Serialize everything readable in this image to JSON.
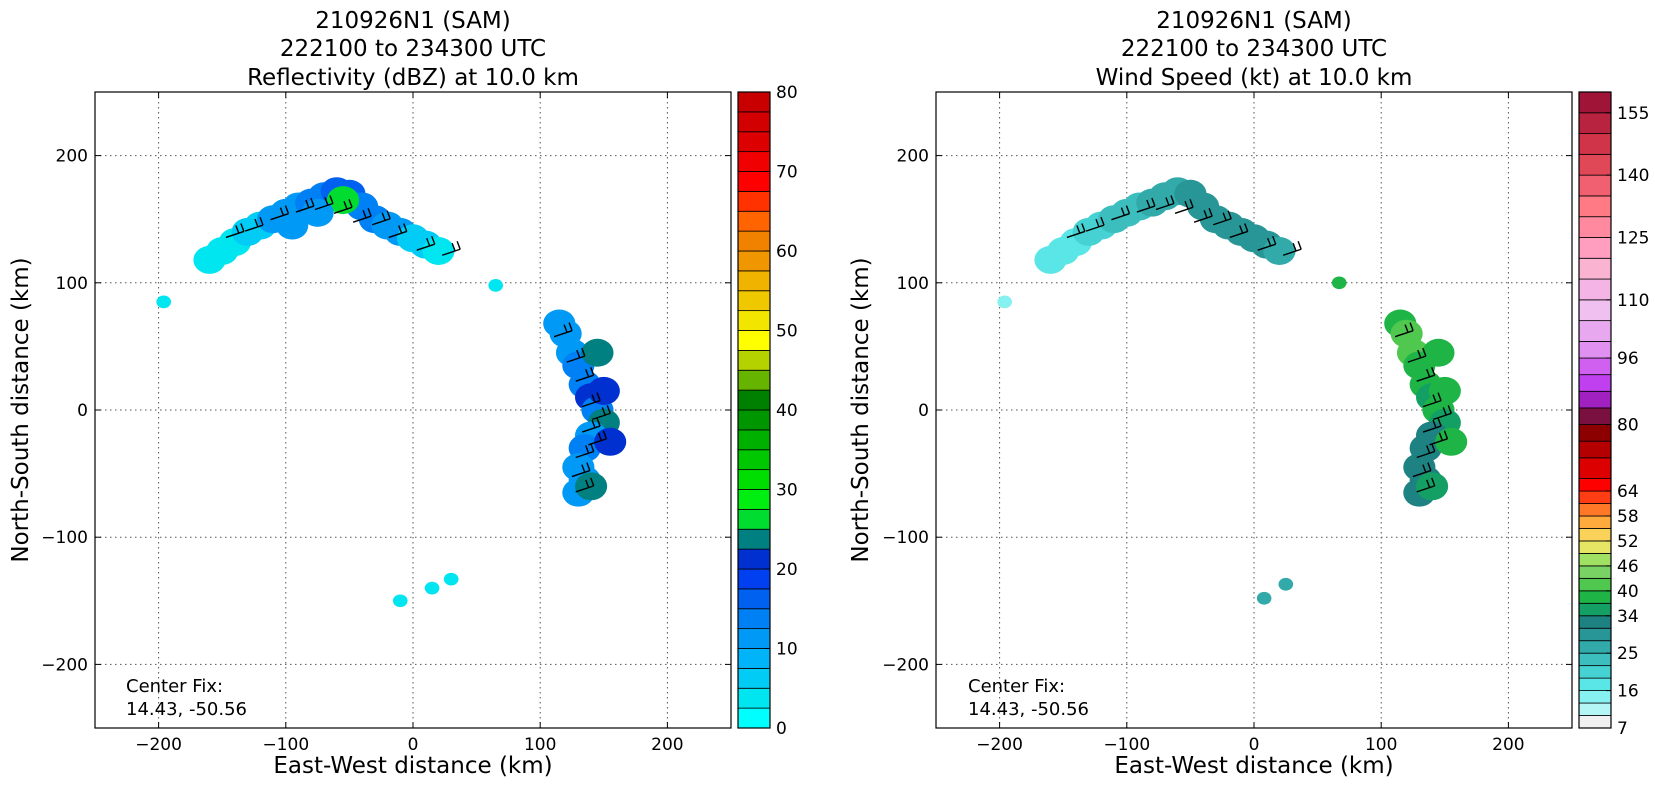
{
  "charts": [
    {
      "title_lines": [
        "210926N1 (SAM)",
        "222100 to 234300 UTC",
        "Reflectivity (dBZ) at 10.0 km"
      ],
      "xlabel": "East-West distance (km)",
      "ylabel": "North-South distance (km)",
      "xlim": [
        -250,
        250
      ],
      "ylim": [
        -250,
        250
      ],
      "xticks": [
        -200,
        -100,
        0,
        100,
        200
      ],
      "yticks": [
        -200,
        -100,
        0,
        100,
        200
      ],
      "xtick_labels": [
        "−200",
        "−100",
        "0",
        "100",
        "200"
      ],
      "ytick_labels": [
        "−200",
        "−100",
        "0",
        "100",
        "200"
      ],
      "grid": true,
      "note_lines": [
        "Center Fix:",
        "14.43, -50.56"
      ],
      "colorbar": {
        "levels": [
          0,
          2.5,
          5,
          7.5,
          10,
          12.5,
          15,
          17.5,
          20,
          22.5,
          25,
          27.5,
          30,
          32.5,
          35,
          37.5,
          40,
          42.5,
          45,
          47.5,
          50,
          52.5,
          55,
          57.5,
          60,
          62.5,
          65,
          67.5,
          70,
          72.5,
          75,
          77.5,
          80
        ],
        "colors": [
          "#00ffff",
          "#00e6f0",
          "#00ccf5",
          "#00b4fa",
          "#0099f5",
          "#0080f5",
          "#0060f0",
          "#0040f0",
          "#0030d0",
          "#008080",
          "#00dd30",
          "#00ee10",
          "#00dd00",
          "#00c800",
          "#00b000",
          "#009600",
          "#008000",
          "#66b400",
          "#b4d200",
          "#ffff00",
          "#f2e600",
          "#f0c800",
          "#f0b400",
          "#f09600",
          "#f08200",
          "#ff6400",
          "#ff3200",
          "#ff0000",
          "#f00000",
          "#dc0000",
          "#d20000",
          "#c80000",
          "#c00010"
        ],
        "tick_values": [
          0,
          10,
          20,
          30,
          40,
          50,
          60,
          70,
          80
        ],
        "tick_labels": [
          "0",
          "10",
          "20",
          "30",
          "40",
          "50",
          "60",
          "70",
          "80"
        ]
      },
      "chart_data": {
        "type": "heatmap",
        "fields": [
          {
            "name": "northwest-band",
            "points": [
              [
                -150,
                125,
                3
              ],
              [
                -140,
                132,
                3
              ],
              [
                -130,
                140,
                5
              ],
              [
                -120,
                145,
                6
              ],
              [
                -110,
                150,
                10
              ],
              [
                -100,
                155,
                10
              ],
              [
                -90,
                160,
                12
              ],
              [
                -80,
                163,
                13
              ],
              [
                -70,
                168,
                14
              ],
              [
                -60,
                172,
                16
              ],
              [
                -50,
                170,
                15
              ],
              [
                -40,
                160,
                14
              ],
              [
                -30,
                150,
                13
              ],
              [
                -20,
                145,
                11
              ],
              [
                -10,
                140,
                10
              ],
              [
                0,
                135,
                6
              ],
              [
                10,
                130,
                5
              ],
              [
                20,
                125,
                4
              ],
              [
                -160,
                118,
                3
              ],
              [
                -55,
                165,
                26
              ],
              [
                -75,
                155,
                12
              ],
              [
                -95,
                145,
                10
              ]
            ]
          },
          {
            "name": "eastern-band",
            "points": [
              [
                115,
                68,
                10
              ],
              [
                120,
                60,
                12
              ],
              [
                125,
                45,
                11
              ],
              [
                130,
                35,
                14
              ],
              [
                135,
                20,
                13
              ],
              [
                140,
                10,
                22
              ],
              [
                145,
                0,
                14
              ],
              [
                150,
                -10,
                24
              ],
              [
                140,
                -20,
                12
              ],
              [
                135,
                -30,
                13
              ],
              [
                130,
                -45,
                12
              ],
              [
                135,
                -55,
                11
              ],
              [
                130,
                -65,
                10
              ],
              [
                140,
                -60,
                24
              ],
              [
                155,
                -25,
                22
              ],
              [
                150,
                15,
                20
              ],
              [
                145,
                45,
                24
              ]
            ]
          },
          {
            "name": "small-echoes",
            "points": [
              [
                -196,
                85,
                3
              ],
              [
                65,
                98,
                3
              ],
              [
                -10,
                -150,
                3
              ],
              [
                15,
                -140,
                3
              ],
              [
                30,
                -133,
                3
              ]
            ]
          }
        ]
      }
    },
    {
      "title_lines": [
        "210926N1 (SAM)",
        "222100 to 234300 UTC",
        "Wind Speed (kt) at 10.0 km"
      ],
      "xlabel": "East-West distance (km)",
      "ylabel": "North-South distance (km)",
      "xlim": [
        -250,
        250
      ],
      "ylim": [
        -250,
        250
      ],
      "xticks": [
        -200,
        -100,
        0,
        100,
        200
      ],
      "yticks": [
        -200,
        -100,
        0,
        100,
        200
      ],
      "xtick_labels": [
        "−200",
        "−100",
        "0",
        "100",
        "200"
      ],
      "ytick_labels": [
        "−200",
        "−100",
        "0",
        "100",
        "200"
      ],
      "grid": true,
      "note_lines": [
        "Center Fix:",
        "14.43, -50.56"
      ],
      "colorbar": {
        "levels": [
          7,
          10,
          13,
          16,
          19,
          22,
          25,
          28,
          31,
          34,
          37,
          40,
          43,
          46,
          49,
          52,
          55,
          58,
          61,
          64,
          67,
          72,
          76,
          80,
          84,
          88,
          92,
          96,
          100,
          105,
          110,
          115,
          120,
          125,
          130,
          135,
          140,
          145,
          150,
          155,
          160
        ],
        "colors": [
          "#f0f0f0",
          "#b4f5f5",
          "#87f0f0",
          "#5ae6e6",
          "#46d2d2",
          "#3cbebe",
          "#32aaaa",
          "#289696",
          "#1e8282",
          "#14a064",
          "#1eb446",
          "#50c850",
          "#78d264",
          "#a0e164",
          "#e6e664",
          "#fad25a",
          "#ffaa3c",
          "#ff7828",
          "#ff3c14",
          "#ff0000",
          "#dc0000",
          "#b40000",
          "#8c0000",
          "#7a1040",
          "#a020c0",
          "#c040f0",
          "#d060f0",
          "#e090f0",
          "#e8a8f0",
          "#f0c0f0",
          "#f5b4e6",
          "#fab4d2",
          "#ff9ebe",
          "#ff8aa0",
          "#ff7a84",
          "#f06070",
          "#e04858",
          "#d03448",
          "#b82440",
          "#a01438"
        ],
        "tick_values": [
          7,
          16,
          25,
          34,
          40,
          46,
          52,
          58,
          64,
          80,
          96,
          110,
          125,
          140,
          155
        ],
        "tick_labels": [
          "7",
          "16",
          "25",
          "34",
          "40",
          "46",
          "52",
          "58",
          "64",
          "80",
          "96",
          "110",
          "125",
          "140",
          "155"
        ]
      },
      "chart_data": {
        "type": "heatmap",
        "fields": [
          {
            "name": "northwest-band",
            "points": [
              [
                -150,
                125,
                16
              ],
              [
                -140,
                132,
                17
              ],
              [
                -130,
                140,
                19
              ],
              [
                -120,
                145,
                19
              ],
              [
                -110,
                150,
                22
              ],
              [
                -100,
                155,
                22
              ],
              [
                -90,
                160,
                22
              ],
              [
                -80,
                163,
                25
              ],
              [
                -70,
                168,
                25
              ],
              [
                -60,
                172,
                25
              ],
              [
                -50,
                170,
                28
              ],
              [
                -40,
                160,
                28
              ],
              [
                -30,
                150,
                28
              ],
              [
                -20,
                145,
                28
              ],
              [
                -10,
                140,
                28
              ],
              [
                0,
                135,
                28
              ],
              [
                10,
                130,
                28
              ],
              [
                20,
                125,
                25
              ],
              [
                -160,
                118,
                16
              ]
            ]
          },
          {
            "name": "eastern-band",
            "points": [
              [
                115,
                68,
                37
              ],
              [
                120,
                60,
                40
              ],
              [
                125,
                45,
                40
              ],
              [
                130,
                35,
                37
              ],
              [
                135,
                20,
                37
              ],
              [
                140,
                10,
                34
              ],
              [
                145,
                0,
                37
              ],
              [
                150,
                -10,
                34
              ],
              [
                140,
                -20,
                31
              ],
              [
                135,
                -30,
                31
              ],
              [
                130,
                -45,
                31
              ],
              [
                135,
                -55,
                31
              ],
              [
                130,
                -65,
                31
              ],
              [
                140,
                -60,
                34
              ],
              [
                155,
                -25,
                37
              ],
              [
                150,
                15,
                37
              ],
              [
                145,
                45,
                37
              ]
            ]
          },
          {
            "name": "small-echoes",
            "points": [
              [
                -196,
                85,
                13
              ],
              [
                67,
                100,
                37
              ],
              [
                8,
                -148,
                25
              ],
              [
                25,
                -137,
                25
              ]
            ]
          }
        ]
      }
    }
  ]
}
